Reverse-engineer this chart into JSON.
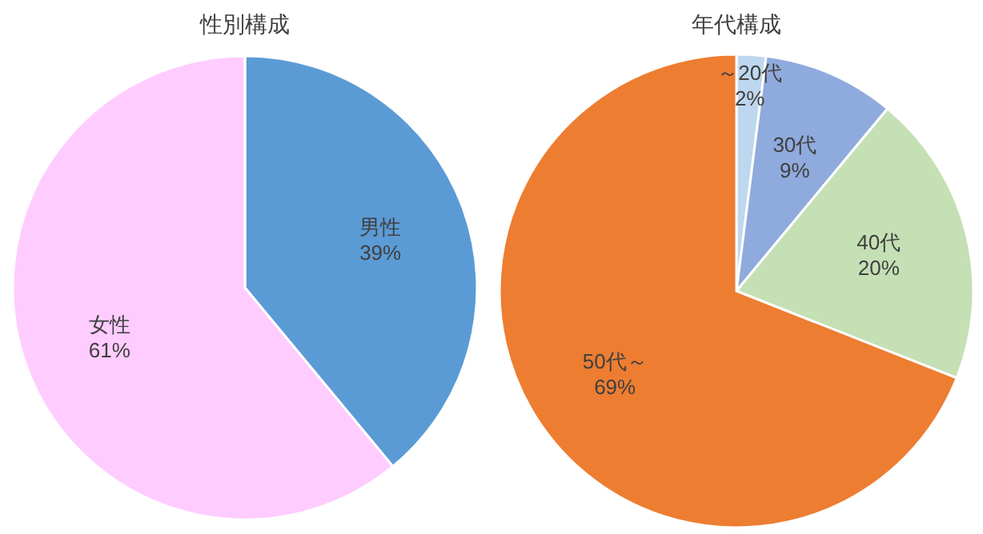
{
  "chart_data": [
    {
      "type": "pie",
      "title": "性別構成",
      "categories": [
        "男性",
        "女性"
      ],
      "values": [
        39,
        61
      ],
      "colors": [
        "#5b9bd5",
        "#ffccff"
      ],
      "value_labels": [
        "39%",
        "61%"
      ]
    },
    {
      "type": "pie",
      "title": "年代構成",
      "categories": [
        "～20代",
        "30代",
        "40代",
        "50代～"
      ],
      "values": [
        2,
        9,
        20,
        69
      ],
      "colors": [
        "#bdd7ee",
        "#8faadc",
        "#c5e0b4",
        "#ed7d31"
      ],
      "value_labels": [
        "2%",
        "9%",
        "20%",
        "69%"
      ]
    }
  ]
}
